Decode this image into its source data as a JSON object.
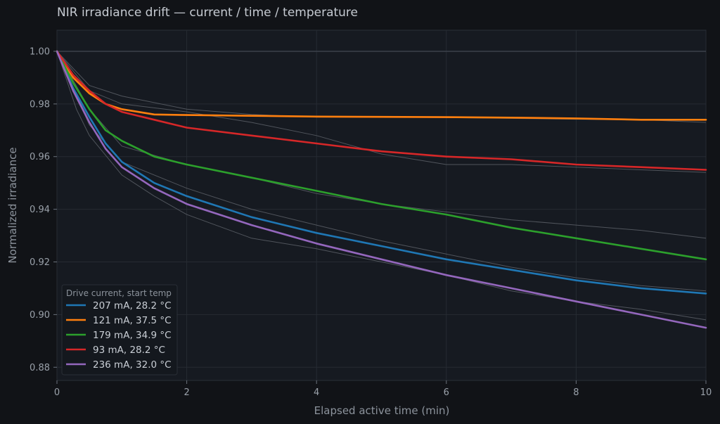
{
  "chart_data": {
    "type": "line",
    "title": "NIR irradiance drift — current / time / temperature",
    "xlabel": "Elapsed active time (min)",
    "ylabel": "Normalized irradiance",
    "xlim": [
      0,
      10
    ],
    "ylim": [
      0.875,
      1.008
    ],
    "xticks": [
      0,
      2,
      4,
      6,
      8,
      10
    ],
    "xtick_labels": [
      "0",
      "2",
      "4",
      "6",
      "8",
      "10"
    ],
    "yticks": [
      0.88,
      0.9,
      0.92,
      0.94,
      0.96,
      0.98,
      1.0
    ],
    "ytick_labels": [
      "0.88",
      "0.90",
      "0.92",
      "0.94",
      "0.96",
      "0.98",
      "1.00"
    ],
    "reference_line": 1.0,
    "grid": true,
    "legend": {
      "title": "Drive current, start temp",
      "placement": "bottom-left"
    },
    "series": [
      {
        "name": "207 mA, 28.2 °C",
        "color": "#1f77b4",
        "x": [
          0,
          0.25,
          0.5,
          0.75,
          1,
          1.5,
          2,
          2.5,
          3,
          4,
          5,
          6,
          7,
          8,
          9,
          10
        ],
        "y": [
          1.0,
          0.986,
          0.975,
          0.965,
          0.958,
          0.95,
          0.945,
          0.941,
          0.937,
          0.931,
          0.926,
          0.921,
          0.917,
          0.913,
          0.91,
          0.908
        ]
      },
      {
        "name": "121 mA, 37.5 °C",
        "color": "#ff7f0e",
        "x": [
          0,
          0.25,
          0.5,
          0.75,
          1,
          1.5,
          2,
          3,
          4,
          5,
          6,
          7,
          8,
          9,
          10
        ],
        "y": [
          1.0,
          0.99,
          0.984,
          0.98,
          0.978,
          0.976,
          0.9758,
          0.9755,
          0.9752,
          0.9751,
          0.975,
          0.9748,
          0.9745,
          0.974,
          0.974
        ]
      },
      {
        "name": "179 mA, 34.9 °C",
        "color": "#2ca02c",
        "x": [
          0,
          0.25,
          0.5,
          0.75,
          1,
          1.5,
          2,
          3,
          4,
          5,
          6,
          7,
          8,
          9,
          10
        ],
        "y": [
          1.0,
          0.988,
          0.978,
          0.97,
          0.966,
          0.96,
          0.957,
          0.952,
          0.947,
          0.942,
          0.938,
          0.933,
          0.929,
          0.925,
          0.921
        ]
      },
      {
        "name": "93 mA, 28.2 °C",
        "color": "#d62728",
        "x": [
          0,
          0.25,
          0.5,
          0.75,
          1,
          1.5,
          2,
          3,
          4,
          5,
          6,
          7,
          8,
          9,
          10
        ],
        "y": [
          1.0,
          0.991,
          0.985,
          0.98,
          0.977,
          0.974,
          0.971,
          0.968,
          0.965,
          0.962,
          0.96,
          0.959,
          0.957,
          0.956,
          0.955
        ]
      },
      {
        "name": "236 mA, 32.0 °C",
        "color": "#9467bd",
        "x": [
          0,
          0.25,
          0.5,
          0.75,
          1,
          1.5,
          2,
          2.5,
          3,
          4,
          5,
          6,
          7,
          8,
          9,
          10
        ],
        "y": [
          1.0,
          0.985,
          0.973,
          0.963,
          0.956,
          0.948,
          0.942,
          0.938,
          0.934,
          0.927,
          0.921,
          0.915,
          0.91,
          0.905,
          0.9,
          0.895
        ]
      }
    ],
    "background_traces": [
      {
        "x": [
          0,
          0.5,
          1,
          2,
          3,
          4,
          5,
          6,
          7,
          8,
          9,
          10
        ],
        "y": [
          1.0,
          0.987,
          0.983,
          0.978,
          0.976,
          0.975,
          0.975,
          0.9748,
          0.9745,
          0.9742,
          0.974,
          0.973
        ]
      },
      {
        "x": [
          0,
          0.5,
          1,
          2,
          3,
          4,
          5,
          5.5,
          6,
          7,
          8,
          9,
          10
        ],
        "y": [
          1.0,
          0.985,
          0.98,
          0.977,
          0.973,
          0.968,
          0.961,
          0.959,
          0.957,
          0.957,
          0.956,
          0.955,
          0.954
        ]
      },
      {
        "x": [
          0,
          0.5,
          1,
          2,
          3,
          4,
          5,
          6,
          7,
          8,
          9,
          10
        ],
        "y": [
          1.0,
          0.978,
          0.964,
          0.957,
          0.952,
          0.946,
          0.942,
          0.939,
          0.936,
          0.934,
          0.932,
          0.929
        ]
      },
      {
        "x": [
          0,
          0.5,
          1,
          2,
          3,
          4,
          5,
          6,
          7,
          8,
          9,
          10
        ],
        "y": [
          1.0,
          0.972,
          0.958,
          0.948,
          0.94,
          0.934,
          0.928,
          0.923,
          0.918,
          0.914,
          0.911,
          0.909
        ]
      },
      {
        "x": [
          0,
          0.3,
          0.5,
          1,
          1.5,
          2,
          3,
          4,
          5,
          6,
          7,
          8,
          9,
          10
        ],
        "y": [
          1.0,
          0.978,
          0.968,
          0.953,
          0.945,
          0.938,
          0.929,
          0.925,
          0.92,
          0.915,
          0.909,
          0.905,
          0.902,
          0.898
        ]
      }
    ]
  }
}
